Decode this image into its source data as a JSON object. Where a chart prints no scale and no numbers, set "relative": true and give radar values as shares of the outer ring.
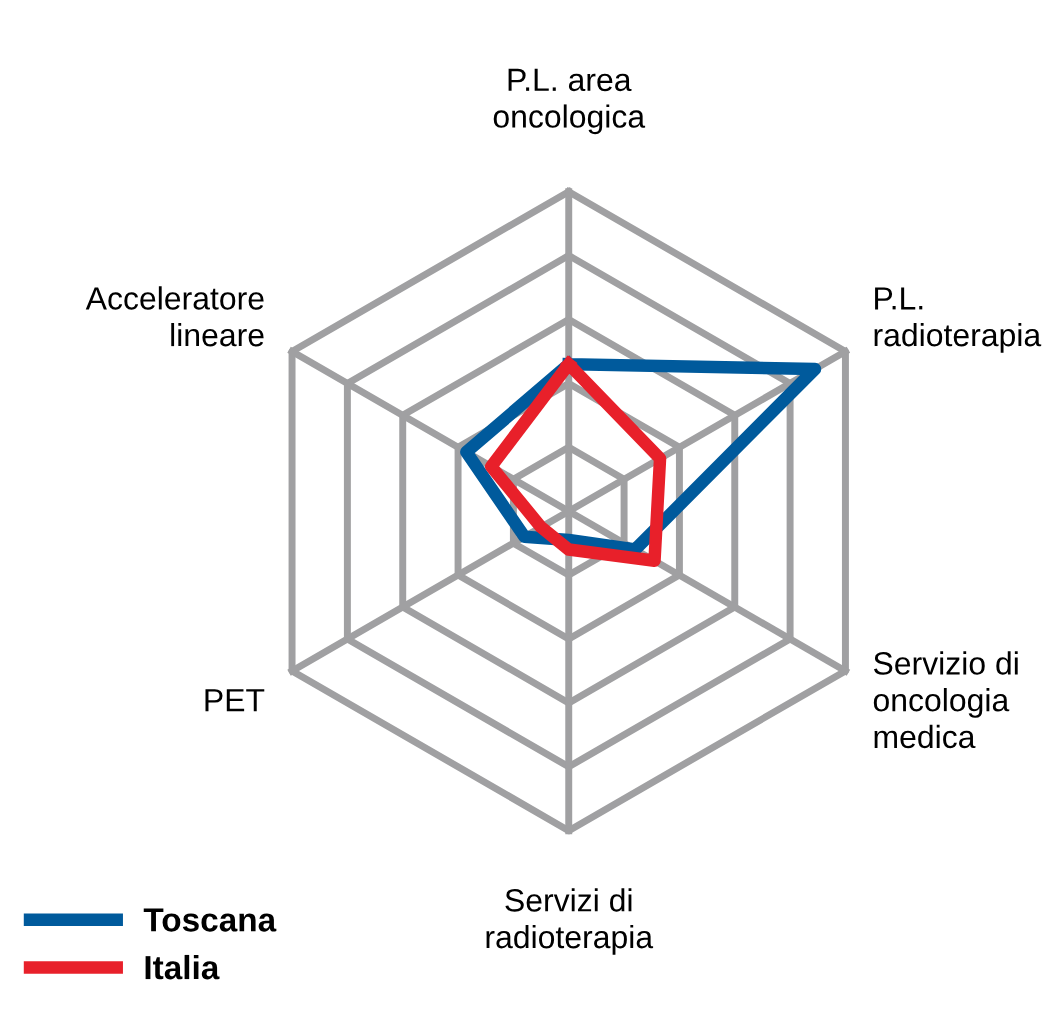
{
  "chart_data": {
    "type": "radar",
    "relative": true,
    "categories": [
      "P.L. area oncologica",
      "P.L. radioterapia",
      "Servizio di oncologia medica",
      "Servizi di radioterapia",
      "PET",
      "Acceleratore lineare"
    ],
    "series": [
      {
        "name": "Toscana",
        "color": "#005a9c",
        "values": [
          0.46,
          0.89,
          0.24,
          0.09,
          0.16,
          0.37
        ]
      },
      {
        "name": "Italia",
        "color": "#e8202a",
        "values": [
          0.46,
          0.33,
          0.31,
          0.12,
          0.1,
          0.28
        ]
      }
    ],
    "legend": "bottom left",
    "grid": true
  }
}
